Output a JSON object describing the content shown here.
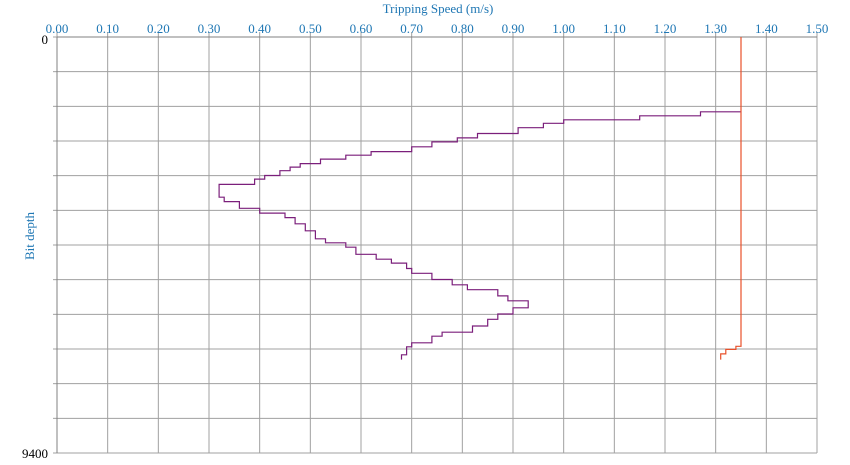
{
  "chart_data": {
    "type": "line",
    "title": "",
    "xlabel": "Tripping Speed (m/s)",
    "ylabel": "Bit depth",
    "x_position": "top",
    "xlim": [
      0,
      1.5
    ],
    "ylim": [
      0,
      9400
    ],
    "y_inverted": true,
    "xticks": [
      "0.00",
      "0.10",
      "0.20",
      "0.30",
      "0.40",
      "0.50",
      "0.60",
      "0.70",
      "0.80",
      "0.90",
      "1.00",
      "1.10",
      "1.20",
      "1.30",
      "1.40",
      "1.50"
    ],
    "yticks": [
      {
        "value": 0,
        "label": "0"
      },
      {
        "value": 9400,
        "label": "9400"
      }
    ],
    "grid": true,
    "colors": {
      "grid": "#a0a0a0",
      "axis_text": "#1f77b4",
      "series_actual": "#7b1f7b",
      "series_limit": "#e8502a"
    },
    "series": [
      {
        "type": "step",
        "points": [
          [
            1.35,
            1690
          ],
          [
            1.27,
            1690
          ],
          [
            1.27,
            1780
          ],
          [
            1.15,
            1780
          ],
          [
            1.15,
            1870
          ],
          [
            1.0,
            1870
          ],
          [
            1.0,
            1950
          ],
          [
            0.96,
            1950
          ],
          [
            0.96,
            2050
          ],
          [
            0.91,
            2050
          ],
          [
            0.91,
            2180
          ],
          [
            0.83,
            2180
          ],
          [
            0.83,
            2280
          ],
          [
            0.79,
            2280
          ],
          [
            0.79,
            2370
          ],
          [
            0.74,
            2370
          ],
          [
            0.74,
            2480
          ],
          [
            0.7,
            2480
          ],
          [
            0.7,
            2590
          ],
          [
            0.62,
            2590
          ],
          [
            0.62,
            2670
          ],
          [
            0.57,
            2670
          ],
          [
            0.57,
            2760
          ],
          [
            0.52,
            2760
          ],
          [
            0.52,
            2860
          ],
          [
            0.48,
            2860
          ],
          [
            0.48,
            2940
          ],
          [
            0.46,
            2940
          ],
          [
            0.46,
            3020
          ],
          [
            0.44,
            3020
          ],
          [
            0.44,
            3130
          ],
          [
            0.41,
            3130
          ],
          [
            0.41,
            3210
          ],
          [
            0.39,
            3210
          ],
          [
            0.39,
            3330
          ],
          [
            0.32,
            3330
          ],
          [
            0.32,
            3620
          ],
          [
            0.33,
            3620
          ],
          [
            0.33,
            3720
          ],
          [
            0.36,
            3720
          ],
          [
            0.36,
            3870
          ],
          [
            0.4,
            3870
          ],
          [
            0.4,
            3980
          ],
          [
            0.45,
            3980
          ],
          [
            0.45,
            4080
          ],
          [
            0.47,
            4080
          ],
          [
            0.47,
            4220
          ],
          [
            0.49,
            4220
          ],
          [
            0.49,
            4380
          ],
          [
            0.51,
            4380
          ],
          [
            0.51,
            4560
          ],
          [
            0.53,
            4560
          ],
          [
            0.53,
            4650
          ],
          [
            0.57,
            4650
          ],
          [
            0.57,
            4750
          ],
          [
            0.59,
            4750
          ],
          [
            0.59,
            4910
          ],
          [
            0.63,
            4910
          ],
          [
            0.63,
            5020
          ],
          [
            0.66,
            5020
          ],
          [
            0.66,
            5110
          ],
          [
            0.69,
            5110
          ],
          [
            0.69,
            5230
          ],
          [
            0.7,
            5230
          ],
          [
            0.7,
            5340
          ],
          [
            0.74,
            5340
          ],
          [
            0.74,
            5480
          ],
          [
            0.78,
            5480
          ],
          [
            0.78,
            5600
          ],
          [
            0.81,
            5600
          ],
          [
            0.81,
            5710
          ],
          [
            0.87,
            5710
          ],
          [
            0.87,
            5850
          ],
          [
            0.89,
            5850
          ],
          [
            0.89,
            5960
          ],
          [
            0.93,
            5960
          ],
          [
            0.93,
            6120
          ],
          [
            0.9,
            6120
          ],
          [
            0.9,
            6260
          ],
          [
            0.87,
            6260
          ],
          [
            0.87,
            6380
          ],
          [
            0.85,
            6380
          ],
          [
            0.85,
            6530
          ],
          [
            0.82,
            6530
          ],
          [
            0.82,
            6670
          ],
          [
            0.76,
            6670
          ],
          [
            0.76,
            6760
          ],
          [
            0.74,
            6760
          ],
          [
            0.74,
            6910
          ],
          [
            0.7,
            6910
          ],
          [
            0.7,
            7000
          ],
          [
            0.69,
            7000
          ],
          [
            0.69,
            7180
          ],
          [
            0.68,
            7180
          ],
          [
            0.68,
            7290
          ]
        ]
      },
      {
        "type": "step",
        "points": [
          [
            1.35,
            -100
          ],
          [
            1.35,
            6990
          ],
          [
            1.34,
            6990
          ],
          [
            1.34,
            7060
          ],
          [
            1.32,
            7060
          ],
          [
            1.32,
            7160
          ],
          [
            1.31,
            7160
          ],
          [
            1.31,
            7290
          ]
        ]
      }
    ]
  }
}
